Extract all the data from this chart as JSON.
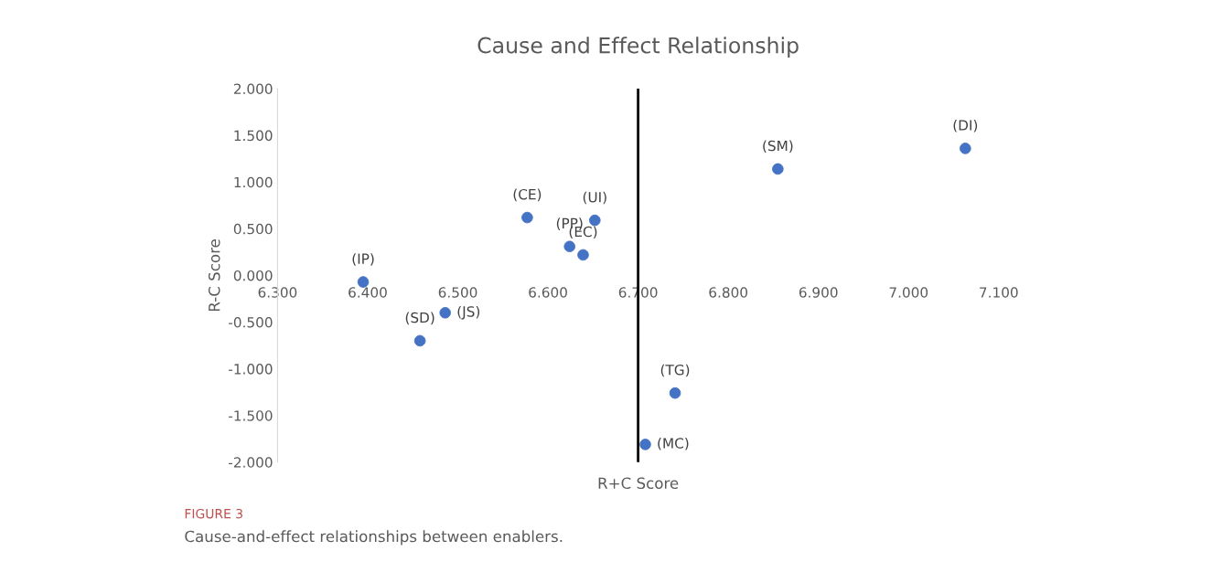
{
  "chart_data": {
    "type": "scatter",
    "title": "Cause and Effect Relationship",
    "xlabel": "R+C Score",
    "ylabel": "R-C Score",
    "x": [
      6.395,
      6.486,
      6.458,
      6.577,
      6.624,
      6.639,
      6.652,
      6.855,
      7.063,
      6.741,
      6.708
    ],
    "series": [
      {
        "color": "#4472c4",
        "values": [
          -0.07,
          -0.4,
          -0.7,
          0.62,
          0.31,
          0.22,
          0.59,
          1.14,
          1.36,
          -1.26,
          -1.81
        ]
      }
    ],
    "marker": "circle",
    "xlim": [
      6.3,
      7.1
    ],
    "xticks": [
      {
        "value": 6.3,
        "label": "6.300"
      },
      {
        "value": 6.4,
        "label": "6.400"
      },
      {
        "value": 6.5,
        "label": "6.500"
      },
      {
        "value": 6.6,
        "label": "6.600"
      },
      {
        "value": 6.7,
        "label": "6.700"
      },
      {
        "value": 6.8,
        "label": "6.800"
      },
      {
        "value": 6.9,
        "label": "6.900"
      },
      {
        "value": 7.0,
        "label": "7.000"
      },
      {
        "value": 7.1,
        "label": "7.100"
      }
    ],
    "ylim": [
      -2.0,
      2.0
    ],
    "yticks": [
      {
        "value": -2.0,
        "label": "-2.000"
      },
      {
        "value": -1.5,
        "label": "-1.500"
      },
      {
        "value": -1.0,
        "label": "-1.000"
      },
      {
        "value": -0.5,
        "label": "-0.500"
      },
      {
        "value": 0.0,
        "label": "0.000"
      },
      {
        "value": 0.5,
        "label": "0.500"
      },
      {
        "value": 1.0,
        "label": "1.000"
      },
      {
        "value": 1.5,
        "label": "1.500"
      },
      {
        "value": 2.0,
        "label": "2.000"
      }
    ],
    "ref_lines": [
      {
        "axis": "x",
        "value": 6.7,
        "color": "#000000"
      }
    ],
    "grid": false,
    "annotations": [
      {
        "text": "(IP)",
        "x": 6.395,
        "y": -0.07
      },
      {
        "text": "(JS)",
        "x": 6.486,
        "y": -0.4
      },
      {
        "text": "(SD)",
        "x": 6.458,
        "y": -0.7
      },
      {
        "text": "(CE)",
        "x": 6.577,
        "y": 0.62
      },
      {
        "text": "(PP)",
        "x": 6.624,
        "y": 0.31
      },
      {
        "text": "(EC)",
        "x": 6.639,
        "y": 0.22
      },
      {
        "text": "(UI)",
        "x": 6.652,
        "y": 0.59
      },
      {
        "text": "(SM)",
        "x": 6.855,
        "y": 1.14
      },
      {
        "text": "(DI)",
        "x": 7.063,
        "y": 1.36
      },
      {
        "text": "(TG)",
        "x": 6.741,
        "y": -1.26
      },
      {
        "text": "(MC)",
        "x": 6.708,
        "y": -1.81
      },
      "FIGURE 3",
      "Cause-and-effect relationships between enablers."
    ]
  }
}
